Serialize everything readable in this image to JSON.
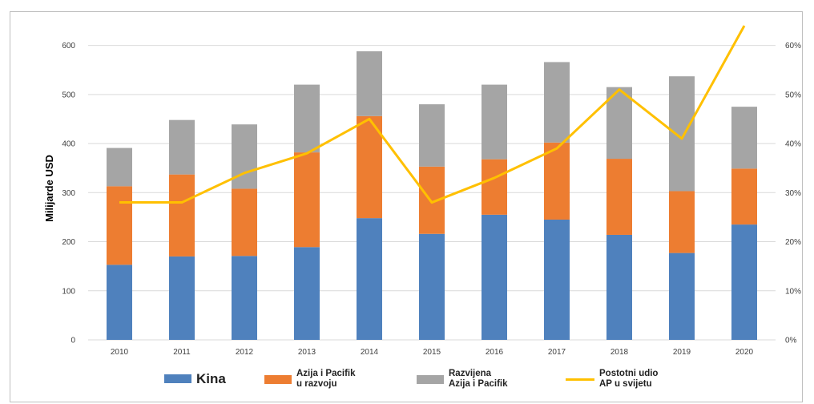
{
  "chart_data": {
    "type": "bar",
    "stacked": true,
    "categories": [
      "2010",
      "2011",
      "2012",
      "2013",
      "2014",
      "2015",
      "2016",
      "2017",
      "2018",
      "2019",
      "2020"
    ],
    "series": [
      {
        "name": "Kina",
        "type": "bar",
        "axis": "left",
        "color": "#4f81bd",
        "values": [
          153,
          170,
          171,
          189,
          248,
          216,
          255,
          245,
          214,
          177,
          235
        ]
      },
      {
        "name": "Azija i Pacifik u razvoju",
        "type": "bar",
        "axis": "left",
        "color": "#ed7d31",
        "values": [
          160,
          167,
          137,
          193,
          208,
          137,
          113,
          157,
          155,
          126,
          114
        ]
      },
      {
        "name": "Razvijena Azija i Pacifik",
        "type": "bar",
        "axis": "left",
        "color": "#a5a5a5",
        "values": [
          78,
          111,
          131,
          138,
          132,
          127,
          152,
          164,
          146,
          234,
          126
        ]
      },
      {
        "name": "Postotni udio AP u svijetu",
        "type": "line",
        "axis": "right",
        "color": "#ffc000",
        "values": [
          28,
          28,
          34,
          38,
          45,
          28,
          33,
          39,
          51,
          41,
          64
        ]
      }
    ],
    "ylabel": "Milijarde USD",
    "ylim": [
      0,
      650
    ],
    "yticks": [
      "0",
      "100",
      "200",
      "300",
      "400",
      "500",
      "600"
    ],
    "y2lim": [
      0,
      65
    ],
    "y2ticks": [
      "0%",
      "10%",
      "20%",
      "30%",
      "40%",
      "50%",
      "60%"
    ],
    "grid": true,
    "legend_position": "bottom"
  },
  "legend": {
    "items": [
      {
        "label": "Kina"
      },
      {
        "label": "Azija i Pacifik\nu razvoju"
      },
      {
        "label": "Razvijena\nAzija i Pacifik"
      },
      {
        "label": "Postotni udio\nAP u svijetu"
      }
    ]
  }
}
